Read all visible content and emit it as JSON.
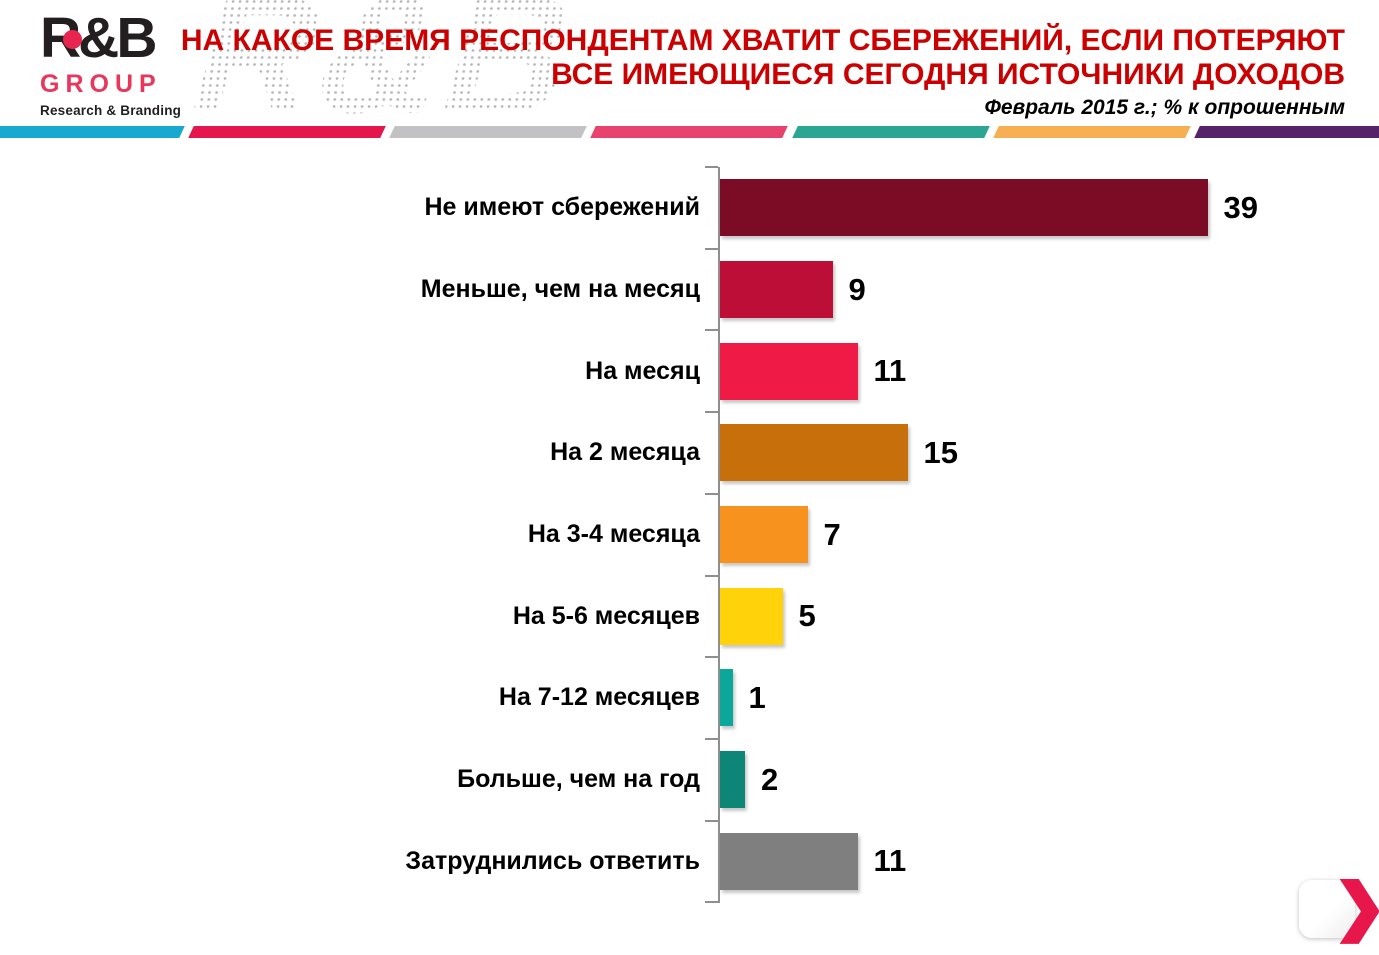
{
  "header": {
    "logo": {
      "brand": "R&B",
      "group": "GROUP",
      "tagline": "Research & Branding",
      "dot_color": "#E8254F"
    },
    "watermark": "R&B",
    "title_line1": "НА КАКОЕ ВРЕМЯ РЕСПОНДЕНТАМ  ХВАТИТ СБЕРЕЖЕНИЙ, ЕСЛИ ПОТЕРЯЮТ",
    "title_line2": "ВСЕ ИМЕЮЩИЕСЯ  СЕГОДНЯ ИСТОЧНИКИ ДОХОДОВ",
    "title_color": "#CB0000",
    "subtitle": "Февраль 2015 г.; % к опрошенным",
    "stripe_colors": [
      "#19A8CF",
      "#E4164B",
      "#C2C2C4",
      "#E8436E",
      "#2BA695",
      "#F6B053",
      "#56236B"
    ]
  },
  "chart_data": {
    "type": "bar",
    "orientation": "horizontal",
    "title": "НА КАКОЕ ВРЕМЯ РЕСПОНДЕНТАМ ХВАТИТ СБЕРЕЖЕНИЙ, ЕСЛИ ПОТЕРЯЮТ ВСЕ ИМЕЮЩИЕСЯ СЕГОДНЯ ИСТОЧНИКИ ДОХОДОВ",
    "subtitle": "Февраль 2015 г.; % к опрошенным",
    "categories": [
      "Не имеют сбережений",
      "Меньше, чем на месяц",
      "На месяц",
      "На 2 месяца",
      "На 3-4 месяца",
      "На 5-6 месяцев",
      "На 7-12 месяцев",
      "Больше, чем на год",
      "Затруднились ответить"
    ],
    "values": [
      39,
      9,
      11,
      15,
      7,
      5,
      1,
      2,
      11
    ],
    "bar_colors": [
      "#7C0B26",
      "#BC0E36",
      "#EF1A46",
      "#C76F0B",
      "#F7921E",
      "#FFD20A",
      "#0BA79A",
      "#0D8678",
      "#7F7F7F"
    ],
    "xlabel": "",
    "ylabel": "",
    "xlim": [
      0,
      44
    ],
    "grid": false,
    "value_labels": true,
    "axis_color": "#8f8f8f",
    "value_label_color": "#000000"
  },
  "next_button": {
    "chevron_icon": "❯",
    "color": "#E8174B"
  }
}
